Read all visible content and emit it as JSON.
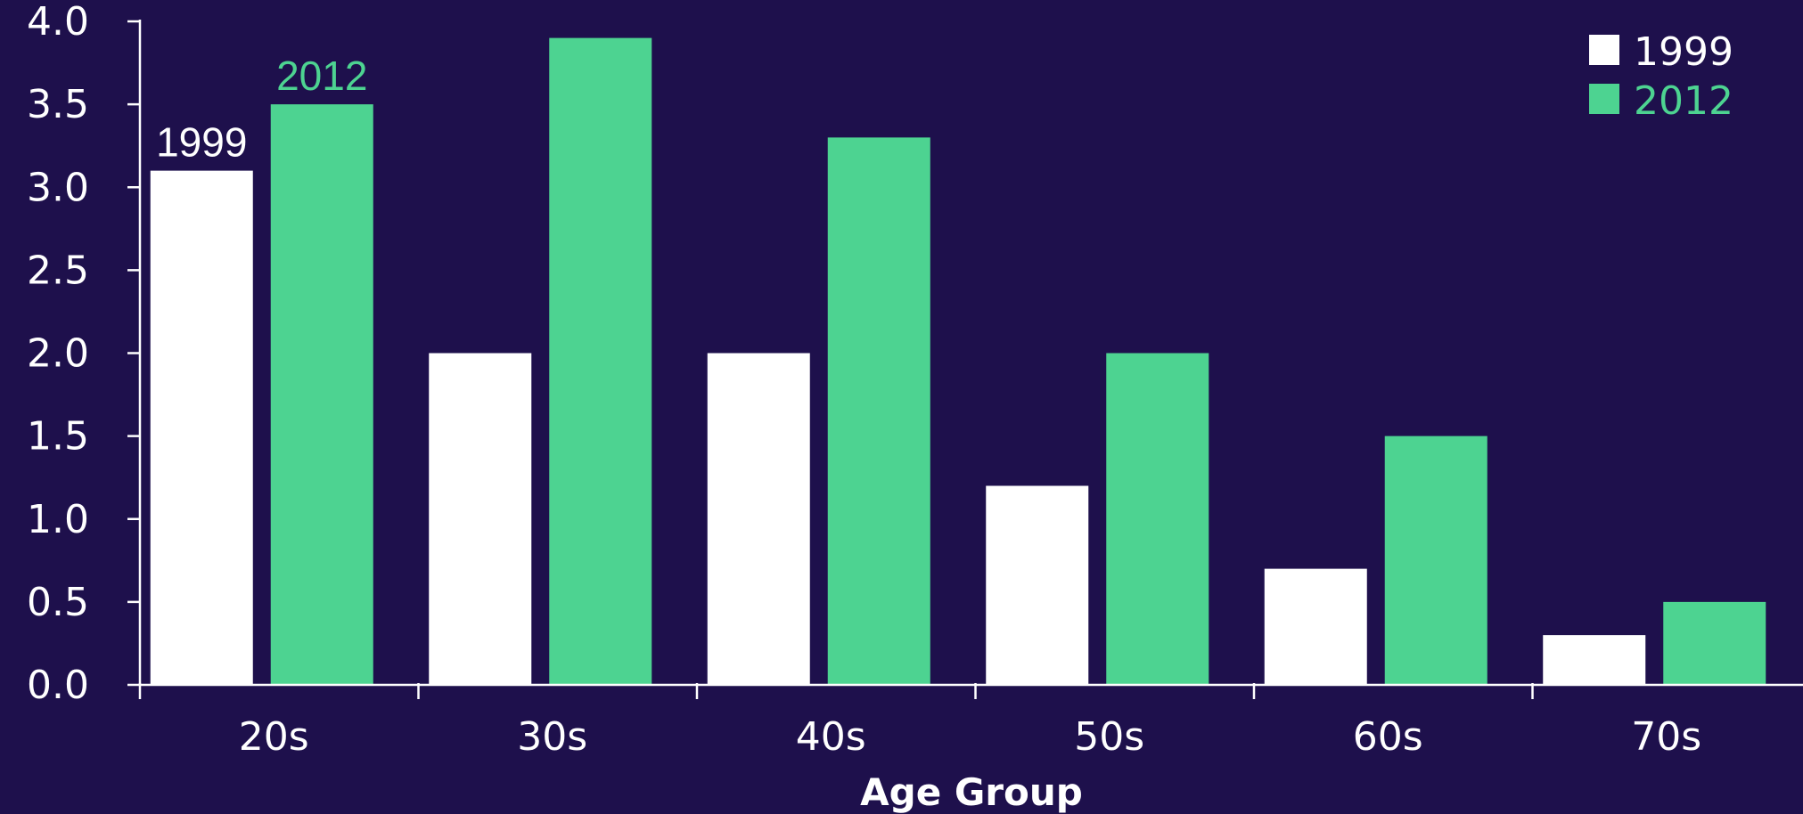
{
  "chart_data": {
    "type": "bar",
    "categories": [
      "20s",
      "30s",
      "40s",
      "50s",
      "60s",
      "70s"
    ],
    "series": [
      {
        "name": "1999",
        "values": [
          3.1,
          2.0,
          2.0,
          1.2,
          0.7,
          0.3
        ],
        "color": "#ffffff"
      },
      {
        "name": "2012",
        "values": [
          3.5,
          3.9,
          3.3,
          2.0,
          1.5,
          0.5
        ],
        "color": "#4dd391"
      }
    ],
    "title": "",
    "xlabel": "Age Group",
    "ylabel": "",
    "ylim": [
      0,
      4.0
    ],
    "yticks": [
      0.0,
      0.5,
      1.0,
      1.5,
      2.0,
      2.5,
      3.0,
      3.5,
      4.0
    ],
    "ytick_labels": [
      "0.0",
      "0.5",
      "1.0",
      "1.5",
      "2.0",
      "2.5",
      "3.0",
      "3.5",
      "4.0"
    ],
    "grid": false,
    "legend": {
      "position": "top-right",
      "entries": [
        "1999",
        "2012"
      ]
    },
    "annotations": [
      {
        "text": "1999",
        "series": "1999",
        "category": "20s"
      },
      {
        "text": "2012",
        "series": "2012",
        "category": "20s"
      }
    ],
    "colors": {
      "background": "#1e104c",
      "axis": "#ffffff",
      "text": "#ffffff"
    }
  }
}
